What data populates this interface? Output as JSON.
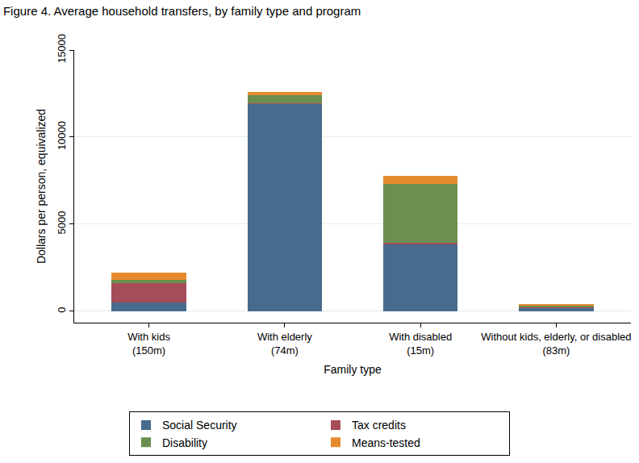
{
  "chart_data": {
    "type": "bar",
    "title": "Figure 4. Average household transfers, by family type and program",
    "x_label": "Family type",
    "y_label": "Dollars per person, equivalized",
    "categories": [
      "With kids\n(150m)",
      "With elderly\n(74m)",
      "With disabled\n(15m)",
      "Without kids, elderly, or disabled\n(83m)"
    ],
    "series": [
      {
        "name": "Social Security",
        "color": "#476b8c",
        "values": [
          500,
          11900,
          3850,
          200
        ]
      },
      {
        "name": "Tax credits",
        "color": "#a64d5a",
        "values": [
          1100,
          50,
          100,
          50
        ]
      },
      {
        "name": "Disability",
        "color": "#6b8f4e",
        "values": [
          200,
          450,
          3350,
          50
        ]
      },
      {
        "name": "Means-tested",
        "color": "#e68a2e",
        "values": [
          400,
          200,
          500,
          100
        ]
      }
    ],
    "stacked": true,
    "ylim": [
      -650,
      15000
    ],
    "yticks": [
      0,
      5000,
      10000,
      15000
    ],
    "grid": true,
    "legend": "bottom"
  }
}
